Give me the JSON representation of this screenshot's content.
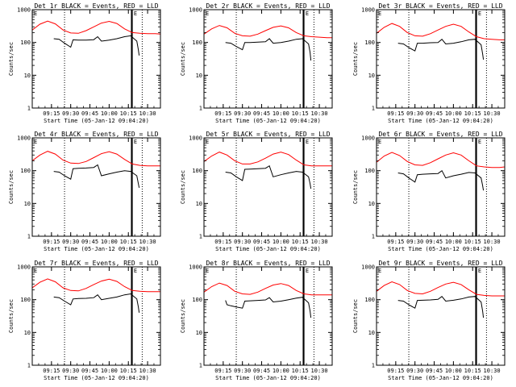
{
  "figure": {
    "xlabel": "Start Time (05-Jan-12 09:04:20)",
    "ylabel": "Counts/sec",
    "ytick_labels": [
      "1",
      "10",
      "100",
      "1000"
    ],
    "xtick_labels": [
      "09:15",
      "09:30",
      "09:45",
      "10:00",
      "10:15",
      "10:30"
    ],
    "legend_left": "E",
    "legend_right": "E",
    "colors": {
      "events": "#000000",
      "lld": "#ff0000",
      "axes": "#000000"
    }
  },
  "chart_data": [
    {
      "type": "line",
      "detector": "1r",
      "title": "Det 1r BLACK = Events, RED = LLD",
      "xlabel": "Start Time (05-Jan-12 09:04:20)",
      "ylabel": "Counts/sec",
      "xlim": [
        9.0,
        10.667
      ],
      "ylim": [
        1,
        1000
      ],
      "yscale": "log",
      "markers": {
        "dotted": [
          9.42,
          10.43
        ],
        "solid": [
          10.29,
          10.3
        ]
      },
      "series": [
        {
          "name": "LLD",
          "color": "#ff0000",
          "x": [
            9.0,
            9.1,
            9.2,
            9.3,
            9.4,
            9.5,
            9.6,
            9.7,
            9.8,
            9.9,
            10.0,
            10.1,
            10.2,
            10.3,
            10.4,
            10.5,
            10.6,
            10.667
          ],
          "y": [
            240,
            360,
            450,
            370,
            240,
            195,
            190,
            230,
            300,
            390,
            440,
            380,
            260,
            200,
            190,
            185,
            185,
            180
          ]
        },
        {
          "name": "Events",
          "color": "#000000",
          "x": [
            9.28,
            9.35,
            9.42,
            9.5,
            9.53,
            9.6,
            9.7,
            9.8,
            9.85,
            9.9,
            10.0,
            10.1,
            10.2,
            10.28,
            10.36,
            10.38,
            10.39
          ],
          "y": [
            130,
            125,
            95,
            72,
            120,
            118,
            118,
            122,
            150,
            110,
            118,
            130,
            150,
            160,
            110,
            60,
            40
          ]
        }
      ]
    },
    {
      "type": "line",
      "detector": "2r",
      "title": "Det 2r BLACK = Events, RED = LLD",
      "xlabel": "Start Time (05-Jan-12 09:04:20)",
      "ylabel": "Counts/sec",
      "xlim": [
        9.0,
        10.667
      ],
      "ylim": [
        1,
        1000
      ],
      "yscale": "log",
      "markers": {
        "dotted": [
          9.42,
          10.43
        ],
        "solid": [
          10.29,
          10.3
        ]
      },
      "series": [
        {
          "name": "LLD",
          "color": "#ff0000",
          "x": [
            9.0,
            9.1,
            9.2,
            9.3,
            9.4,
            9.5,
            9.6,
            9.7,
            9.8,
            9.9,
            10.0,
            10.1,
            10.2,
            10.3,
            10.4,
            10.5,
            10.6,
            10.667
          ],
          "y": [
            180,
            260,
            330,
            280,
            190,
            160,
            155,
            180,
            230,
            290,
            320,
            280,
            200,
            160,
            150,
            145,
            140,
            140
          ]
        },
        {
          "name": "Events",
          "color": "#000000",
          "x": [
            9.28,
            9.35,
            9.42,
            9.5,
            9.53,
            9.6,
            9.7,
            9.8,
            9.85,
            9.9,
            10.0,
            10.1,
            10.2,
            10.28,
            10.36,
            10.38,
            10.39
          ],
          "y": [
            100,
            95,
            75,
            60,
            100,
            100,
            102,
            105,
            130,
            95,
            100,
            110,
            125,
            130,
            90,
            50,
            28
          ]
        }
      ]
    },
    {
      "type": "line",
      "detector": "3r",
      "title": "Det 3r BLACK = Events, RED = LLD",
      "xlabel": "Start Time (05-Jan-12 09:04:20)",
      "ylabel": "Counts/sec",
      "xlim": [
        9.0,
        10.667
      ],
      "ylim": [
        1,
        1000
      ],
      "yscale": "log",
      "markers": {
        "dotted": [
          9.42,
          10.43
        ],
        "solid": [
          10.29,
          10.3
        ]
      },
      "series": [
        {
          "name": "LLD",
          "color": "#ff0000",
          "x": [
            9.0,
            9.1,
            9.2,
            9.3,
            9.4,
            9.5,
            9.6,
            9.7,
            9.8,
            9.9,
            10.0,
            10.1,
            10.2,
            10.3,
            10.4,
            10.5,
            10.6,
            10.667
          ],
          "y": [
            190,
            290,
            380,
            310,
            200,
            160,
            155,
            185,
            240,
            310,
            360,
            310,
            210,
            150,
            130,
            125,
            120,
            120
          ]
        },
        {
          "name": "Events",
          "color": "#000000",
          "x": [
            9.28,
            9.35,
            9.42,
            9.5,
            9.53,
            9.6,
            9.7,
            9.8,
            9.85,
            9.9,
            10.0,
            10.1,
            10.2,
            10.28,
            10.36,
            10.38,
            10.39
          ],
          "y": [
            95,
            90,
            70,
            55,
            95,
            95,
            98,
            100,
            125,
            90,
            95,
            105,
            120,
            125,
            85,
            45,
            30
          ]
        }
      ]
    },
    {
      "type": "line",
      "detector": "4r",
      "title": "Det 4r BLACK = Events, RED = LLD",
      "xlabel": "Start Time (05-Jan-12 09:04:20)",
      "ylabel": "Counts/sec",
      "xlim": [
        9.0,
        10.667
      ],
      "ylim": [
        1,
        1000
      ],
      "yscale": "log",
      "markers": {
        "dotted": [
          9.42,
          10.43
        ],
        "solid": [
          10.29,
          10.3
        ]
      },
      "series": [
        {
          "name": "LLD",
          "color": "#ff0000",
          "x": [
            9.0,
            9.1,
            9.2,
            9.3,
            9.4,
            9.5,
            9.6,
            9.7,
            9.8,
            9.9,
            10.0,
            10.1,
            10.2,
            10.3,
            10.4,
            10.5,
            10.6,
            10.667
          ],
          "y": [
            200,
            300,
            390,
            320,
            210,
            170,
            165,
            190,
            250,
            330,
            380,
            320,
            220,
            160,
            145,
            140,
            140,
            140
          ]
        },
        {
          "name": "Events",
          "color": "#000000",
          "x": [
            9.28,
            9.35,
            9.42,
            9.5,
            9.53,
            9.6,
            9.7,
            9.8,
            9.85,
            9.9,
            10.0,
            10.1,
            10.2,
            10.28,
            10.36,
            10.38,
            10.39
          ],
          "y": [
            95,
            90,
            70,
            55,
            115,
            118,
            120,
            125,
            150,
            70,
            80,
            90,
            100,
            95,
            70,
            40,
            30
          ]
        }
      ]
    },
    {
      "type": "line",
      "detector": "5r",
      "title": "Det 5r BLACK = Events, RED = LLD",
      "xlabel": "Start Time (05-Jan-12 09:04:20)",
      "ylabel": "Counts/sec",
      "xlim": [
        9.0,
        10.667
      ],
      "ylim": [
        1,
        1000
      ],
      "yscale": "log",
      "markers": {
        "dotted": [
          9.42,
          10.43
        ],
        "solid": [
          10.29,
          10.3
        ]
      },
      "series": [
        {
          "name": "LLD",
          "color": "#ff0000",
          "x": [
            9.0,
            9.1,
            9.2,
            9.3,
            9.4,
            9.5,
            9.6,
            9.7,
            9.8,
            9.9,
            10.0,
            10.1,
            10.2,
            10.3,
            10.4,
            10.5,
            10.6,
            10.667
          ],
          "y": [
            190,
            280,
            370,
            300,
            200,
            160,
            160,
            185,
            240,
            320,
            370,
            310,
            210,
            150,
            140,
            140,
            140,
            140
          ]
        },
        {
          "name": "Events",
          "color": "#000000",
          "x": [
            9.28,
            9.35,
            9.42,
            9.5,
            9.53,
            9.6,
            9.7,
            9.8,
            9.85,
            9.9,
            10.0,
            10.1,
            10.2,
            10.28,
            10.36,
            10.38,
            10.39
          ],
          "y": [
            90,
            85,
            65,
            50,
            110,
            112,
            115,
            118,
            140,
            65,
            75,
            85,
            95,
            90,
            65,
            40,
            28
          ]
        }
      ]
    },
    {
      "type": "line",
      "detector": "6r",
      "title": "Det 6r BLACK = Events, RED = LLD",
      "xlabel": "Start Time (05-Jan-12 09:04:20)",
      "ylabel": "Counts/sec",
      "xlim": [
        9.0,
        10.667
      ],
      "ylim": [
        1,
        1000
      ],
      "yscale": "log",
      "markers": {
        "dotted": [
          9.42,
          10.43
        ],
        "solid": [
          10.29,
          10.3
        ]
      },
      "series": [
        {
          "name": "LLD",
          "color": "#ff0000",
          "x": [
            9.0,
            9.1,
            9.2,
            9.3,
            9.4,
            9.5,
            9.6,
            9.7,
            9.8,
            9.9,
            10.0,
            10.1,
            10.2,
            10.3,
            10.4,
            10.5,
            10.6,
            10.667
          ],
          "y": [
            180,
            280,
            360,
            290,
            190,
            150,
            145,
            175,
            230,
            300,
            350,
            300,
            200,
            140,
            130,
            125,
            125,
            130
          ]
        },
        {
          "name": "Events",
          "color": "#000000",
          "x": [
            9.28,
            9.35,
            9.42,
            9.5,
            9.53,
            9.6,
            9.7,
            9.8,
            9.85,
            9.9,
            10.0,
            10.1,
            10.2,
            10.28,
            10.36,
            10.38,
            10.39
          ],
          "y": [
            85,
            80,
            60,
            45,
            75,
            78,
            80,
            82,
            100,
            60,
            70,
            78,
            88,
            85,
            60,
            35,
            25
          ]
        }
      ]
    },
    {
      "type": "line",
      "detector": "7r",
      "title": "Det 7r BLACK = Events, RED = LLD",
      "xlabel": "Start Time (05-Jan-12 09:04:20)",
      "ylabel": "Counts/sec",
      "xlim": [
        9.0,
        10.667
      ],
      "ylim": [
        1,
        1000
      ],
      "yscale": "log",
      "markers": {
        "dotted": [
          9.42,
          10.43
        ],
        "solid": [
          10.29,
          10.3
        ]
      },
      "series": [
        {
          "name": "LLD",
          "color": "#ff0000",
          "x": [
            9.0,
            9.1,
            9.2,
            9.3,
            9.4,
            9.5,
            9.6,
            9.7,
            9.8,
            9.9,
            10.0,
            10.1,
            10.2,
            10.3,
            10.4,
            10.5,
            10.6,
            10.667
          ],
          "y": [
            230,
            340,
            430,
            350,
            230,
            190,
            185,
            220,
            290,
            370,
            420,
            360,
            250,
            190,
            180,
            175,
            175,
            175
          ]
        },
        {
          "name": "Events",
          "color": "#000000",
          "x": [
            9.28,
            9.35,
            9.42,
            9.5,
            9.53,
            9.6,
            9.7,
            9.8,
            9.85,
            9.9,
            10.0,
            10.1,
            10.2,
            10.28,
            10.36,
            10.38,
            10.39
          ],
          "y": [
            120,
            115,
            90,
            70,
            105,
            108,
            110,
            115,
            140,
            100,
            110,
            120,
            140,
            150,
            105,
            60,
            40
          ]
        }
      ]
    },
    {
      "type": "line",
      "detector": "8r",
      "title": "Det 8r BLACK = Events, RED = LLD",
      "xlabel": "Start Time (05-Jan-12 09:04:20)",
      "ylabel": "Counts/sec",
      "xlim": [
        9.0,
        10.667
      ],
      "ylim": [
        1,
        1000
      ],
      "yscale": "log",
      "markers": {
        "dotted": [
          9.42,
          10.43
        ],
        "solid": [
          10.29,
          10.3
        ]
      },
      "series": [
        {
          "name": "LLD",
          "color": "#ff0000",
          "x": [
            9.0,
            9.1,
            9.2,
            9.3,
            9.4,
            9.5,
            9.6,
            9.7,
            9.8,
            9.9,
            10.0,
            10.1,
            10.2,
            10.3,
            10.4,
            10.5,
            10.6,
            10.667
          ],
          "y": [
            170,
            250,
            320,
            270,
            180,
            150,
            145,
            170,
            220,
            280,
            310,
            270,
            190,
            150,
            140,
            140,
            140,
            140
          ]
        },
        {
          "name": "Events",
          "color": "#000000",
          "x": [
            9.28,
            9.3,
            9.35,
            9.42,
            9.5,
            9.53,
            9.6,
            9.7,
            9.8,
            9.85,
            9.9,
            10.0,
            10.1,
            10.2,
            10.28,
            10.36,
            10.38,
            10.39
          ],
          "y": [
            95,
            70,
            65,
            60,
            55,
            90,
            92,
            95,
            98,
            115,
            85,
            90,
            100,
            112,
            118,
            80,
            45,
            28
          ]
        }
      ]
    },
    {
      "type": "line",
      "detector": "9r",
      "title": "Det 9r BLACK = Events, RED = LLD",
      "xlabel": "Start Time (05-Jan-12 09:04:20)",
      "ylabel": "Counts/sec",
      "xlim": [
        9.0,
        10.667
      ],
      "ylim": [
        1,
        1000
      ],
      "yscale": "log",
      "markers": {
        "dotted": [
          9.42,
          10.43
        ],
        "solid": [
          10.29,
          10.3
        ]
      },
      "series": [
        {
          "name": "LLD",
          "color": "#ff0000",
          "x": [
            9.0,
            9.1,
            9.2,
            9.3,
            9.4,
            9.5,
            9.6,
            9.7,
            9.8,
            9.9,
            10.0,
            10.1,
            10.2,
            10.3,
            10.4,
            10.5,
            10.6,
            10.667
          ],
          "y": [
            180,
            270,
            350,
            290,
            190,
            155,
            150,
            180,
            235,
            300,
            340,
            290,
            200,
            145,
            135,
            130,
            130,
            130
          ]
        },
        {
          "name": "Events",
          "color": "#000000",
          "x": [
            9.28,
            9.35,
            9.42,
            9.5,
            9.53,
            9.6,
            9.7,
            9.8,
            9.85,
            9.9,
            10.0,
            10.1,
            10.2,
            10.28,
            10.36,
            10.38,
            10.39
          ],
          "y": [
            95,
            90,
            70,
            55,
            95,
            96,
            98,
            102,
            125,
            90,
            96,
            105,
            120,
            125,
            85,
            45,
            28
          ]
        }
      ]
    }
  ]
}
